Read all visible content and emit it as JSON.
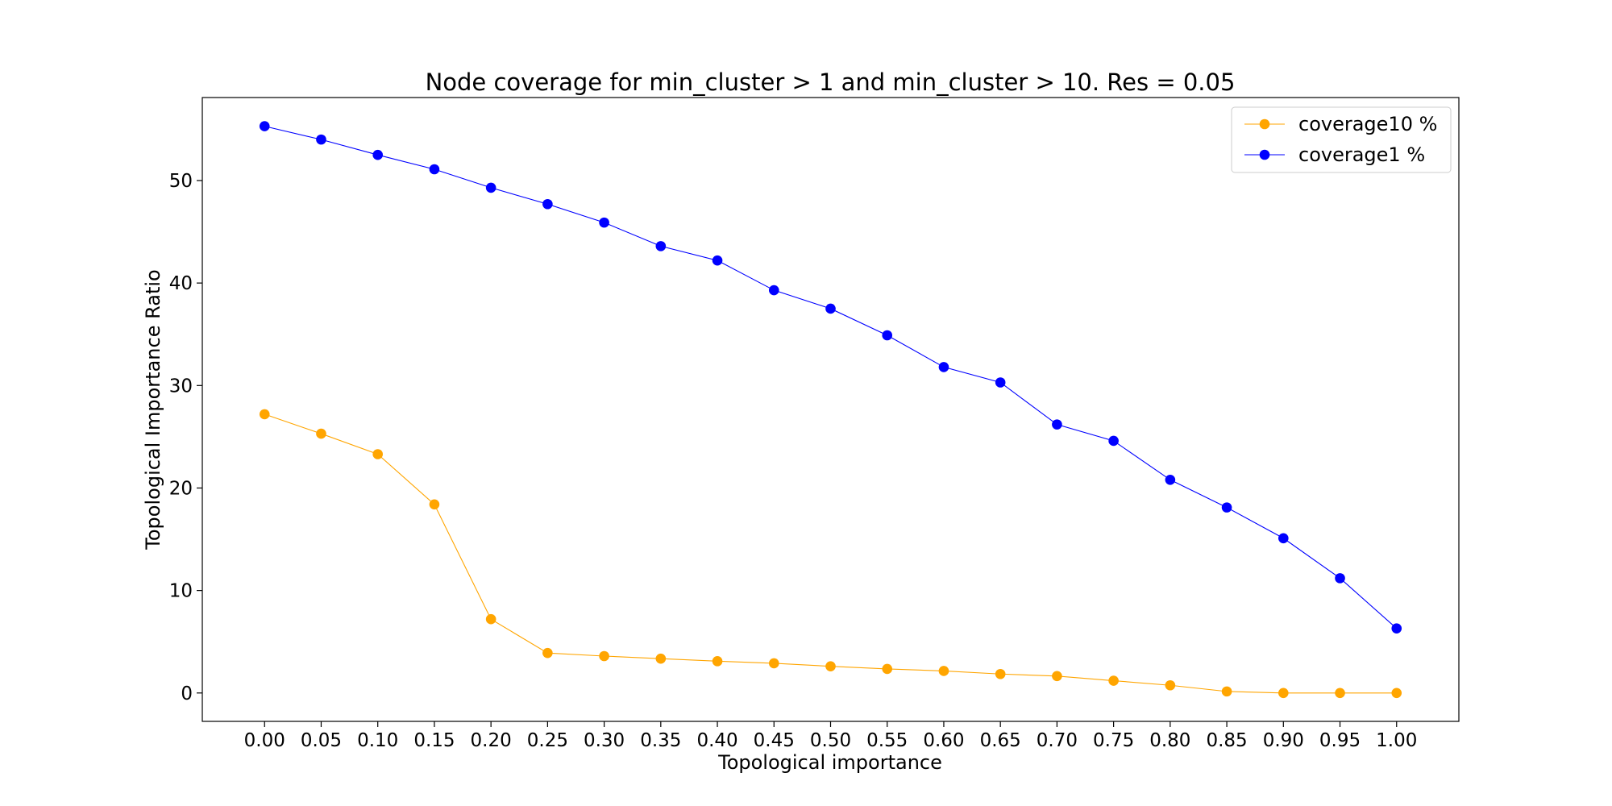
{
  "chart_data": {
    "type": "line",
    "title": "Node coverage for min_cluster > 1 and min_cluster > 10. Res = 0.05",
    "xlabel": "Topological importance",
    "ylabel": "Topological Importance Ratio",
    "x": [
      0.0,
      0.05,
      0.1,
      0.15,
      0.2,
      0.25,
      0.3,
      0.35,
      0.4,
      0.45,
      0.5,
      0.55,
      0.6,
      0.65,
      0.7,
      0.75,
      0.8,
      0.85,
      0.9,
      0.95,
      1.0
    ],
    "x_tick_labels": [
      "0.00",
      "0.05",
      "0.10",
      "0.15",
      "0.20",
      "0.25",
      "0.30",
      "0.35",
      "0.40",
      "0.45",
      "0.50",
      "0.55",
      "0.60",
      "0.65",
      "0.70",
      "0.75",
      "0.80",
      "0.85",
      "0.90",
      "0.95",
      "1.00"
    ],
    "xlim": [
      -0.055,
      1.055
    ],
    "ylim": [
      -2.77,
      58.1
    ],
    "y_ticks": [
      0,
      10,
      20,
      30,
      40,
      50
    ],
    "y_tick_labels": [
      "0",
      "10",
      "20",
      "30",
      "40",
      "50"
    ],
    "grid": false,
    "legend_position": "top-right",
    "series": [
      {
        "name": "coverage10 %",
        "color": "#ffa500",
        "values": [
          27.2,
          25.3,
          23.3,
          18.4,
          7.2,
          3.9,
          3.6,
          3.35,
          3.1,
          2.9,
          2.6,
          2.35,
          2.15,
          1.85,
          1.65,
          1.2,
          0.75,
          0.15,
          0.0,
          0.0,
          0.0
        ]
      },
      {
        "name": "coverage1 %",
        "color": "#0000ff",
        "values": [
          55.3,
          54.0,
          52.5,
          51.1,
          49.3,
          47.7,
          45.9,
          43.6,
          42.2,
          39.3,
          37.5,
          34.9,
          31.8,
          30.3,
          26.2,
          24.6,
          20.8,
          18.1,
          15.1,
          11.2,
          6.3
        ]
      }
    ]
  }
}
